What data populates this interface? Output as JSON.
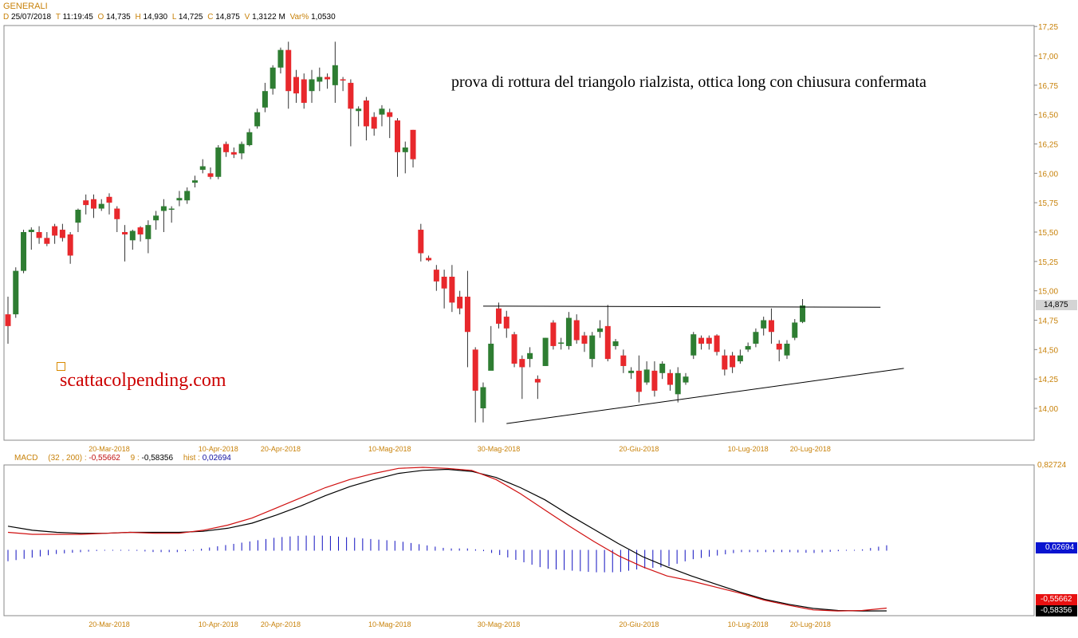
{
  "header": {
    "symbol": "GENERALI",
    "date_key": "D",
    "date": "25/07/2018",
    "time_key": "T",
    "time": "11:19:45",
    "open_key": "O",
    "open": "14,735",
    "high_key": "H",
    "high": "14,930",
    "low_key": "L",
    "low": "14,725",
    "close_key": "C",
    "close": "14,875",
    "vol_key": "V",
    "vol": "1,3122 M",
    "var_key": "Var%",
    "var": "1,0530"
  },
  "annotation": "prova di rottura del triangolo rialzista, ottica long con chiusura confermata",
  "watermark": "scattacolpending.com",
  "price_badge": "14,875",
  "macd_header": {
    "name": "MACD",
    "params": "(32 , 200) :",
    "macd_value": "-0,55662",
    "signal_period": "9 :",
    "signal_value": "-0,58356",
    "hist_label": "hist :",
    "hist_value": "0,02694"
  },
  "macd_badges": {
    "top": "0,82724",
    "hist": "0,02694",
    "macd": "-0,55662",
    "signal": "-0,58356"
  },
  "colors": {
    "up": "#2e7d32",
    "down": "#e8282c",
    "axis_text": "#c8820a",
    "macd": "#d01010",
    "signal": "#000000",
    "hist": "#1010c0",
    "watermark": "#cc0000"
  },
  "chart_data": [
    {
      "type": "candlestick",
      "title": "GENERALI",
      "y_ticks": [
        "17,25",
        "17,00",
        "16,75",
        "16,50",
        "16,25",
        "16,00",
        "15,75",
        "15,50",
        "15,25",
        "15,00",
        "14,75",
        "14,50",
        "14,25",
        "14,00"
      ],
      "ylim": [
        13.78,
        17.25
      ],
      "x_tick_labels": [
        {
          "label": "20-Mar-2018",
          "index": 13
        },
        {
          "label": "10-Apr-2018",
          "index": 27
        },
        {
          "label": "20-Apr-2018",
          "index": 35
        },
        {
          "label": "10-Mag-2018",
          "index": 49
        },
        {
          "label": "30-Mag-2018",
          "index": 63
        },
        {
          "label": "20-Giu-2018",
          "index": 81
        },
        {
          "label": "10-Lug-2018",
          "index": 95
        },
        {
          "label": "20-Lug-2018",
          "index": 103
        }
      ],
      "candles": [
        [
          14.8,
          14.7,
          14.95,
          14.55
        ],
        [
          14.8,
          15.17,
          15.2,
          14.77
        ],
        [
          15.17,
          15.5,
          15.52,
          15.15
        ],
        [
          15.5,
          15.52,
          15.54,
          15.35
        ],
        [
          15.5,
          15.45,
          15.55,
          15.4
        ],
        [
          15.45,
          15.4,
          15.5,
          15.38
        ],
        [
          15.55,
          15.47,
          15.57,
          15.4
        ],
        [
          15.52,
          15.45,
          15.57,
          15.42
        ],
        [
          15.48,
          15.3,
          15.5,
          15.23
        ],
        [
          15.58,
          15.69,
          15.7,
          15.5
        ],
        [
          15.77,
          15.73,
          15.82,
          15.65
        ],
        [
          15.78,
          15.7,
          15.82,
          15.62
        ],
        [
          15.7,
          15.74,
          15.78,
          15.68
        ],
        [
          15.8,
          15.75,
          15.83,
          15.65
        ],
        [
          15.7,
          15.61,
          15.72,
          15.5
        ],
        [
          15.5,
          15.48,
          15.56,
          15.25
        ],
        [
          15.43,
          15.51,
          15.52,
          15.35
        ],
        [
          15.54,
          15.48,
          15.55,
          15.42
        ],
        [
          15.44,
          15.56,
          15.6,
          15.32
        ],
        [
          15.6,
          15.64,
          15.68,
          15.52
        ],
        [
          15.68,
          15.72,
          15.78,
          15.5
        ],
        [
          15.69,
          15.7,
          15.72,
          15.58
        ],
        [
          15.77,
          15.79,
          15.85,
          15.72
        ],
        [
          15.77,
          15.85,
          15.88,
          15.74
        ],
        [
          15.92,
          15.94,
          15.98,
          15.88
        ],
        [
          16.03,
          16.06,
          16.12,
          16.0
        ],
        [
          16.0,
          15.97,
          16.05,
          15.95
        ],
        [
          15.97,
          16.22,
          16.24,
          15.95
        ],
        [
          16.25,
          16.18,
          16.27,
          16.14
        ],
        [
          16.18,
          16.16,
          16.22,
          16.13
        ],
        [
          16.17,
          16.25,
          16.27,
          16.12
        ],
        [
          16.24,
          16.35,
          16.38,
          16.23
        ],
        [
          16.4,
          16.52,
          16.55,
          16.38
        ],
        [
          16.56,
          16.7,
          16.77,
          16.52
        ],
        [
          16.72,
          16.9,
          16.92,
          16.67
        ],
        [
          16.9,
          17.05,
          17.07,
          16.85
        ],
        [
          17.05,
          16.7,
          17.12,
          16.55
        ],
        [
          16.82,
          16.68,
          16.88,
          16.6
        ],
        [
          16.8,
          16.6,
          16.85,
          16.55
        ],
        [
          16.7,
          16.8,
          16.88,
          16.6
        ],
        [
          16.78,
          16.82,
          16.9,
          16.7
        ],
        [
          16.82,
          16.8,
          16.85,
          16.72
        ],
        [
          16.75,
          16.92,
          17.12,
          16.6
        ],
        [
          16.8,
          16.79,
          16.82,
          16.7
        ],
        [
          16.77,
          16.55,
          16.8,
          16.23
        ],
        [
          16.53,
          16.55,
          16.57,
          16.4
        ],
        [
          16.62,
          16.4,
          16.65,
          16.28
        ],
        [
          16.48,
          16.38,
          16.52,
          16.32
        ],
        [
          16.5,
          16.55,
          16.58,
          16.4
        ],
        [
          16.52,
          16.48,
          16.55,
          16.3
        ],
        [
          16.45,
          16.18,
          16.47,
          15.97
        ],
        [
          16.18,
          16.22,
          16.27,
          16.0
        ],
        [
          16.37,
          16.12,
          16.37,
          16.05
        ],
        [
          15.52,
          15.32,
          15.57,
          15.25
        ],
        [
          15.28,
          15.26,
          15.3,
          15.25
        ],
        [
          15.18,
          15.08,
          15.22,
          15.0
        ],
        [
          15.12,
          15.02,
          15.18,
          14.85
        ],
        [
          15.12,
          14.9,
          15.22,
          14.82
        ],
        [
          14.95,
          14.85,
          15.0,
          14.8
        ],
        [
          14.95,
          14.65,
          15.17,
          14.35
        ],
        [
          14.5,
          14.15,
          14.52,
          13.88
        ],
        [
          14.0,
          14.18,
          14.22,
          13.88
        ],
        [
          14.32,
          14.55,
          14.7,
          14.35
        ],
        [
          14.85,
          14.72,
          14.9,
          14.68
        ],
        [
          14.78,
          14.68,
          14.83,
          14.6
        ],
        [
          14.63,
          14.38,
          14.65,
          14.35
        ],
        [
          14.42,
          14.35,
          14.45,
          14.08
        ],
        [
          14.42,
          14.47,
          14.52,
          14.35
        ],
        [
          14.25,
          14.22,
          14.28,
          14.08
        ],
        [
          14.36,
          14.6,
          14.6,
          14.36
        ],
        [
          14.73,
          14.53,
          14.75,
          14.5
        ],
        [
          14.55,
          14.56,
          14.6,
          14.5
        ],
        [
          14.53,
          14.77,
          14.82,
          14.5
        ],
        [
          14.75,
          14.58,
          14.8,
          14.55
        ],
        [
          14.62,
          14.55,
          14.65,
          14.48
        ],
        [
          14.42,
          14.62,
          14.65,
          14.35
        ],
        [
          14.65,
          14.68,
          14.75,
          14.6
        ],
        [
          14.7,
          14.42,
          14.88,
          14.4
        ],
        [
          14.53,
          14.57,
          14.59,
          14.5
        ],
        [
          14.45,
          14.36,
          14.5,
          14.3
        ],
        [
          14.3,
          14.32,
          14.35,
          14.25
        ],
        [
          14.32,
          14.14,
          14.45,
          14.05
        ],
        [
          14.22,
          14.33,
          14.4,
          14.2
        ],
        [
          14.32,
          14.15,
          14.4,
          14.1
        ],
        [
          14.3,
          14.38,
          14.4,
          14.25
        ],
        [
          14.3,
          14.2,
          14.33,
          14.15
        ],
        [
          14.12,
          14.3,
          14.35,
          14.05
        ],
        [
          14.22,
          14.27,
          14.3,
          14.2
        ],
        [
          14.45,
          14.63,
          14.65,
          14.42
        ],
        [
          14.6,
          14.55,
          14.62,
          14.5
        ],
        [
          14.6,
          14.55,
          14.62,
          14.5
        ],
        [
          14.62,
          14.48,
          14.63,
          14.45
        ],
        [
          14.45,
          14.33,
          14.5,
          14.28
        ],
        [
          14.45,
          14.35,
          14.48,
          14.3
        ],
        [
          14.4,
          14.45,
          14.5,
          14.38
        ],
        [
          14.5,
          14.53,
          14.56,
          14.48
        ],
        [
          14.55,
          14.65,
          14.68,
          14.52
        ],
        [
          14.68,
          14.75,
          14.78,
          14.62
        ],
        [
          14.75,
          14.65,
          14.85,
          14.55
        ],
        [
          14.55,
          14.5,
          14.58,
          14.4
        ],
        [
          14.45,
          14.55,
          14.58,
          14.42
        ],
        [
          14.6,
          14.73,
          14.76,
          14.58
        ],
        [
          14.735,
          14.875,
          14.93,
          14.725
        ]
      ],
      "trendlines": [
        {
          "name": "resistance",
          "points": [
            [
              61,
              14.87
            ],
            [
              112,
              14.86
            ]
          ]
        },
        {
          "name": "support",
          "points": [
            [
              64,
              13.87
            ],
            [
              115,
              14.34
            ]
          ]
        }
      ]
    },
    {
      "type": "line",
      "title": "MACD",
      "ylim": [
        -0.6,
        0.83
      ],
      "y_ticks": [
        "0,82724"
      ],
      "x_tick_labels": [
        "20-Mar-2018",
        "10-Apr-2018",
        "20-Apr-2018",
        "10-Mag-2018",
        "30-Mag-2018",
        "20-Giu-2018",
        "10-Lug-2018",
        "20-Lug-2018"
      ],
      "series": [
        {
          "name": "MACD",
          "values": [
            0.19,
            0.17,
            0.17,
            0.17,
            0.18,
            0.19,
            0.18,
            0.18,
            0.21,
            0.26,
            0.33,
            0.43,
            0.53,
            0.63,
            0.71,
            0.77,
            0.82,
            0.83,
            0.82,
            0.8,
            0.71,
            0.57,
            0.41,
            0.25,
            0.1,
            -0.04,
            -0.15,
            -0.24,
            -0.29,
            -0.35,
            -0.41,
            -0.48,
            -0.53,
            -0.575,
            -0.585,
            -0.58,
            -0.557
          ]
        },
        {
          "name": "signal",
          "values": [
            0.25,
            0.21,
            0.19,
            0.18,
            0.18,
            0.19,
            0.19,
            0.19,
            0.2,
            0.23,
            0.28,
            0.36,
            0.45,
            0.55,
            0.64,
            0.71,
            0.77,
            0.8,
            0.81,
            0.79,
            0.73,
            0.63,
            0.51,
            0.36,
            0.22,
            0.08,
            -0.05,
            -0.15,
            -0.24,
            -0.32,
            -0.4,
            -0.47,
            -0.52,
            -0.56,
            -0.58,
            -0.585,
            -0.584
          ]
        },
        {
          "name": "hist",
          "values": [
            -0.06,
            -0.04,
            -0.02,
            -0.01,
            0.0,
            0.0,
            -0.01,
            -0.01,
            0.01,
            0.03,
            0.05,
            0.07,
            0.08,
            0.08,
            0.07,
            0.06,
            0.05,
            0.03,
            0.01,
            0.01,
            -0.02,
            -0.06,
            -0.1,
            -0.11,
            -0.12,
            -0.12,
            -0.1,
            -0.09,
            -0.05,
            -0.03,
            -0.01,
            -0.01,
            -0.01,
            -0.015,
            -0.005,
            0.005,
            0.027
          ]
        }
      ]
    }
  ]
}
